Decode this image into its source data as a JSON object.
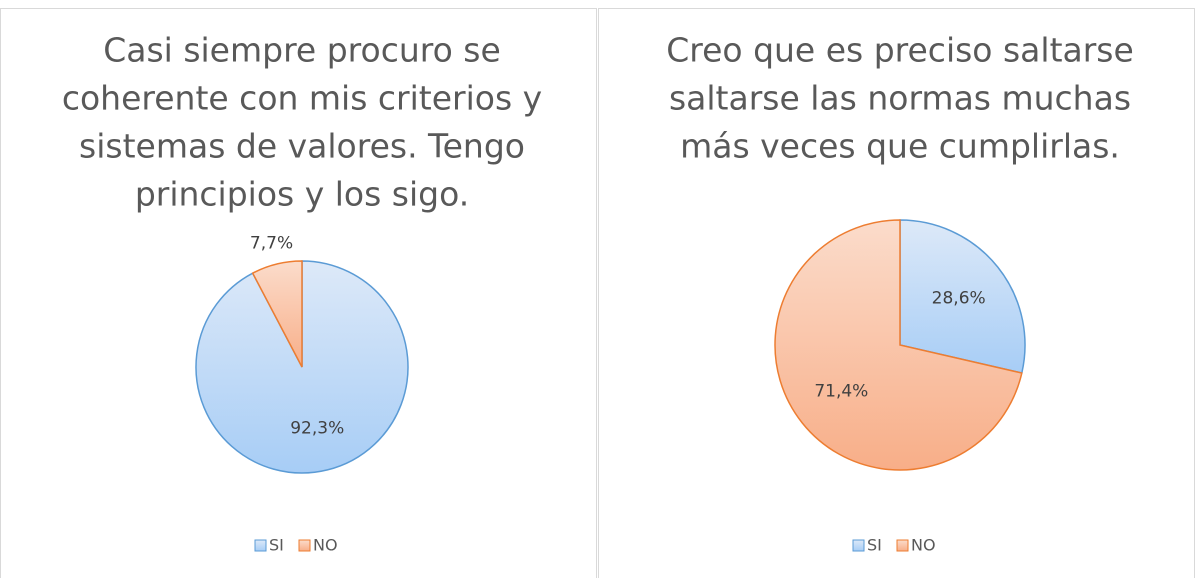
{
  "chart_data": [
    {
      "type": "pie",
      "title": [
        "Casi siempre procuro se",
        "coherente con mis criterios y",
        "sistemas de valores. Tengo",
        "principios y los sigo."
      ],
      "categories": [
        "SI",
        "NO"
      ],
      "values": [
        92.3,
        7.7
      ],
      "value_labels": [
        "92,3%",
        "7,7%"
      ],
      "colors": [
        "#5b9bd5",
        "#ed7d31"
      ],
      "legend": "bottom"
    },
    {
      "type": "pie",
      "title": [
        "Creo que es preciso saltarse",
        "saltarse las normas muchas",
        "más veces que cumplirlas."
      ],
      "categories": [
        "SI",
        "NO"
      ],
      "values": [
        28.6,
        71.4
      ],
      "value_labels": [
        "28,6%",
        "71,4%"
      ],
      "colors": [
        "#5b9bd5",
        "#ed7d31"
      ],
      "legend": "bottom"
    }
  ]
}
